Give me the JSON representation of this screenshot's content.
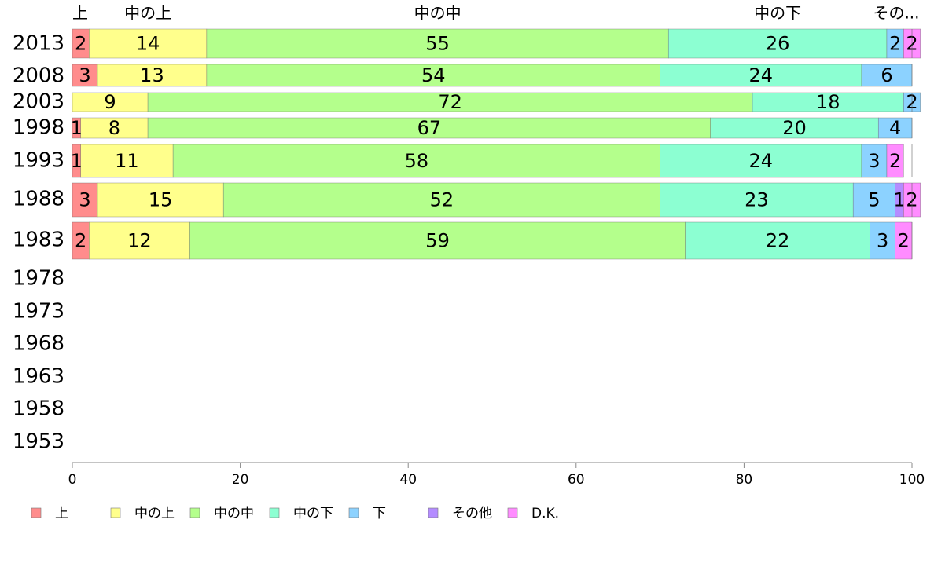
{
  "chart_data": {
    "type": "bar",
    "orientation": "horizontal",
    "stacked": true,
    "categories": [
      "2013",
      "2008",
      "2003",
      "1998",
      "1993",
      "1988",
      "1983",
      "1978",
      "1973",
      "1968",
      "1963",
      "1958",
      "1953"
    ],
    "series": [
      {
        "name": "上",
        "color": "#ff8c8c",
        "values": [
          2,
          3,
          0,
          1,
          1,
          3,
          2,
          null,
          null,
          null,
          null,
          null,
          null
        ]
      },
      {
        "name": "中の上",
        "color": "#ffff8c",
        "values": [
          14,
          13,
          9,
          8,
          11,
          15,
          12,
          null,
          null,
          null,
          null,
          null,
          null
        ]
      },
      {
        "name": "中の中",
        "color": "#b4ff8c",
        "values": [
          55,
          54,
          72,
          67,
          58,
          52,
          59,
          null,
          null,
          null,
          null,
          null,
          null
        ]
      },
      {
        "name": "中の下",
        "color": "#8cffd2",
        "values": [
          26,
          24,
          18,
          20,
          24,
          23,
          22,
          null,
          null,
          null,
          null,
          null,
          null
        ]
      },
      {
        "name": "下",
        "color": "#8cd2ff",
        "values": [
          2,
          6,
          2,
          4,
          3,
          5,
          3,
          null,
          null,
          null,
          null,
          null,
          null
        ]
      },
      {
        "name": "その他",
        "color": "#b48cff",
        "values": [
          0,
          0,
          0,
          0,
          0,
          1,
          0,
          null,
          null,
          null,
          null,
          null,
          null
        ]
      },
      {
        "name": "D.K.",
        "color": "#ff8cff",
        "values": [
          2,
          0,
          0,
          0,
          2,
          2,
          2,
          null,
          null,
          null,
          null,
          null,
          null
        ]
      }
    ],
    "segment_labels": [
      [
        "2",
        "14",
        "55",
        "26",
        "2",
        "",
        "2"
      ],
      [
        "3",
        "13",
        "54",
        "24",
        "6",
        "",
        ""
      ],
      [
        "",
        "9",
        "72",
        "18",
        "2",
        "",
        ""
      ],
      [
        "1",
        "8",
        "67",
        "20",
        "4",
        "",
        ""
      ],
      [
        "1",
        "11",
        "58",
        "24",
        "3",
        "",
        "2"
      ],
      [
        "3",
        "15",
        "52",
        "23",
        "5",
        "1",
        "2"
      ],
      [
        "2",
        "12",
        "59",
        "22",
        "3",
        "",
        "2"
      ]
    ],
    "top_labels": [
      "上",
      "中の上",
      "中の中",
      "中の下",
      "その..."
    ],
    "xlim": [
      0,
      100
    ],
    "xticks": [
      0,
      20,
      40,
      60,
      80,
      100
    ],
    "legend_position": "bottom",
    "grid": false
  }
}
